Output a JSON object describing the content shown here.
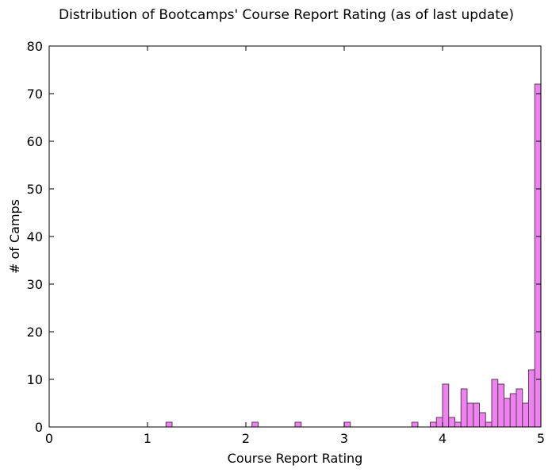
{
  "chart_data": {
    "type": "bar",
    "title": "Distribution of Bootcamps' Course Report Rating (as of last update)",
    "xlabel": "Course Report Rating",
    "ylabel": "# of Camps",
    "xlim": [
      0,
      5
    ],
    "ylim": [
      0,
      80
    ],
    "bin_width": 0.0625,
    "x_ticks": [
      0,
      1,
      2,
      3,
      4,
      5
    ],
    "y_ticks": [
      0,
      10,
      20,
      30,
      40,
      50,
      60,
      70,
      80
    ],
    "bars": [
      {
        "x": 1.1875,
        "value": 1
      },
      {
        "x": 2.0625,
        "value": 1
      },
      {
        "x": 2.5,
        "value": 1
      },
      {
        "x": 3.0,
        "value": 1
      },
      {
        "x": 3.6875,
        "value": 1
      },
      {
        "x": 3.875,
        "value": 1
      },
      {
        "x": 3.9375,
        "value": 2
      },
      {
        "x": 4.0,
        "value": 9
      },
      {
        "x": 4.0625,
        "value": 2
      },
      {
        "x": 4.125,
        "value": 1
      },
      {
        "x": 4.1875,
        "value": 8
      },
      {
        "x": 4.25,
        "value": 5
      },
      {
        "x": 4.3125,
        "value": 5
      },
      {
        "x": 4.375,
        "value": 3
      },
      {
        "x": 4.4375,
        "value": 1
      },
      {
        "x": 4.5,
        "value": 10
      },
      {
        "x": 4.5625,
        "value": 9
      },
      {
        "x": 4.625,
        "value": 6
      },
      {
        "x": 4.6875,
        "value": 7
      },
      {
        "x": 4.75,
        "value": 8
      },
      {
        "x": 4.8125,
        "value": 5
      },
      {
        "x": 4.875,
        "value": 12
      },
      {
        "x": 4.9375,
        "value": 72
      }
    ],
    "bar_color": "#ee82ee",
    "edge_color": "#5a3a5a",
    "grid": false
  }
}
